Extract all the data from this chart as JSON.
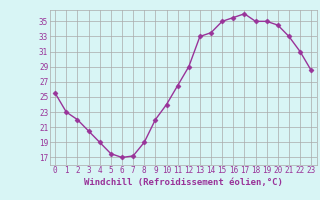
{
  "x": [
    0,
    1,
    2,
    3,
    4,
    5,
    6,
    7,
    8,
    9,
    10,
    11,
    12,
    13,
    14,
    15,
    16,
    17,
    18,
    19,
    20,
    21,
    22,
    23
  ],
  "y": [
    25.5,
    23.0,
    22.0,
    20.5,
    19.0,
    17.5,
    17.0,
    17.2,
    19.0,
    22.0,
    24.0,
    26.5,
    29.0,
    33.0,
    33.5,
    35.0,
    35.5,
    36.0,
    35.0,
    35.0,
    34.5,
    33.0,
    31.0,
    28.5
  ],
  "line_color": "#993399",
  "marker": "D",
  "markersize": 2.5,
  "linewidth": 1.0,
  "xlabel": "Windchill (Refroidissement éolien,°C)",
  "xlabel_fontsize": 6.5,
  "ylabel_ticks": [
    17,
    19,
    21,
    23,
    25,
    27,
    29,
    31,
    33,
    35
  ],
  "xtick_labels": [
    "0",
    "1",
    "2",
    "3",
    "4",
    "5",
    "6",
    "7",
    "8",
    "9",
    "10",
    "11",
    "12",
    "13",
    "14",
    "15",
    "16",
    "17",
    "18",
    "19",
    "20",
    "21",
    "22",
    "23"
  ],
  "xlim": [
    -0.5,
    23.5
  ],
  "ylim": [
    16.0,
    36.5
  ],
  "bg_color": "#d8f5f5",
  "grid_color": "#aaaaaa",
  "tick_fontsize": 5.5
}
